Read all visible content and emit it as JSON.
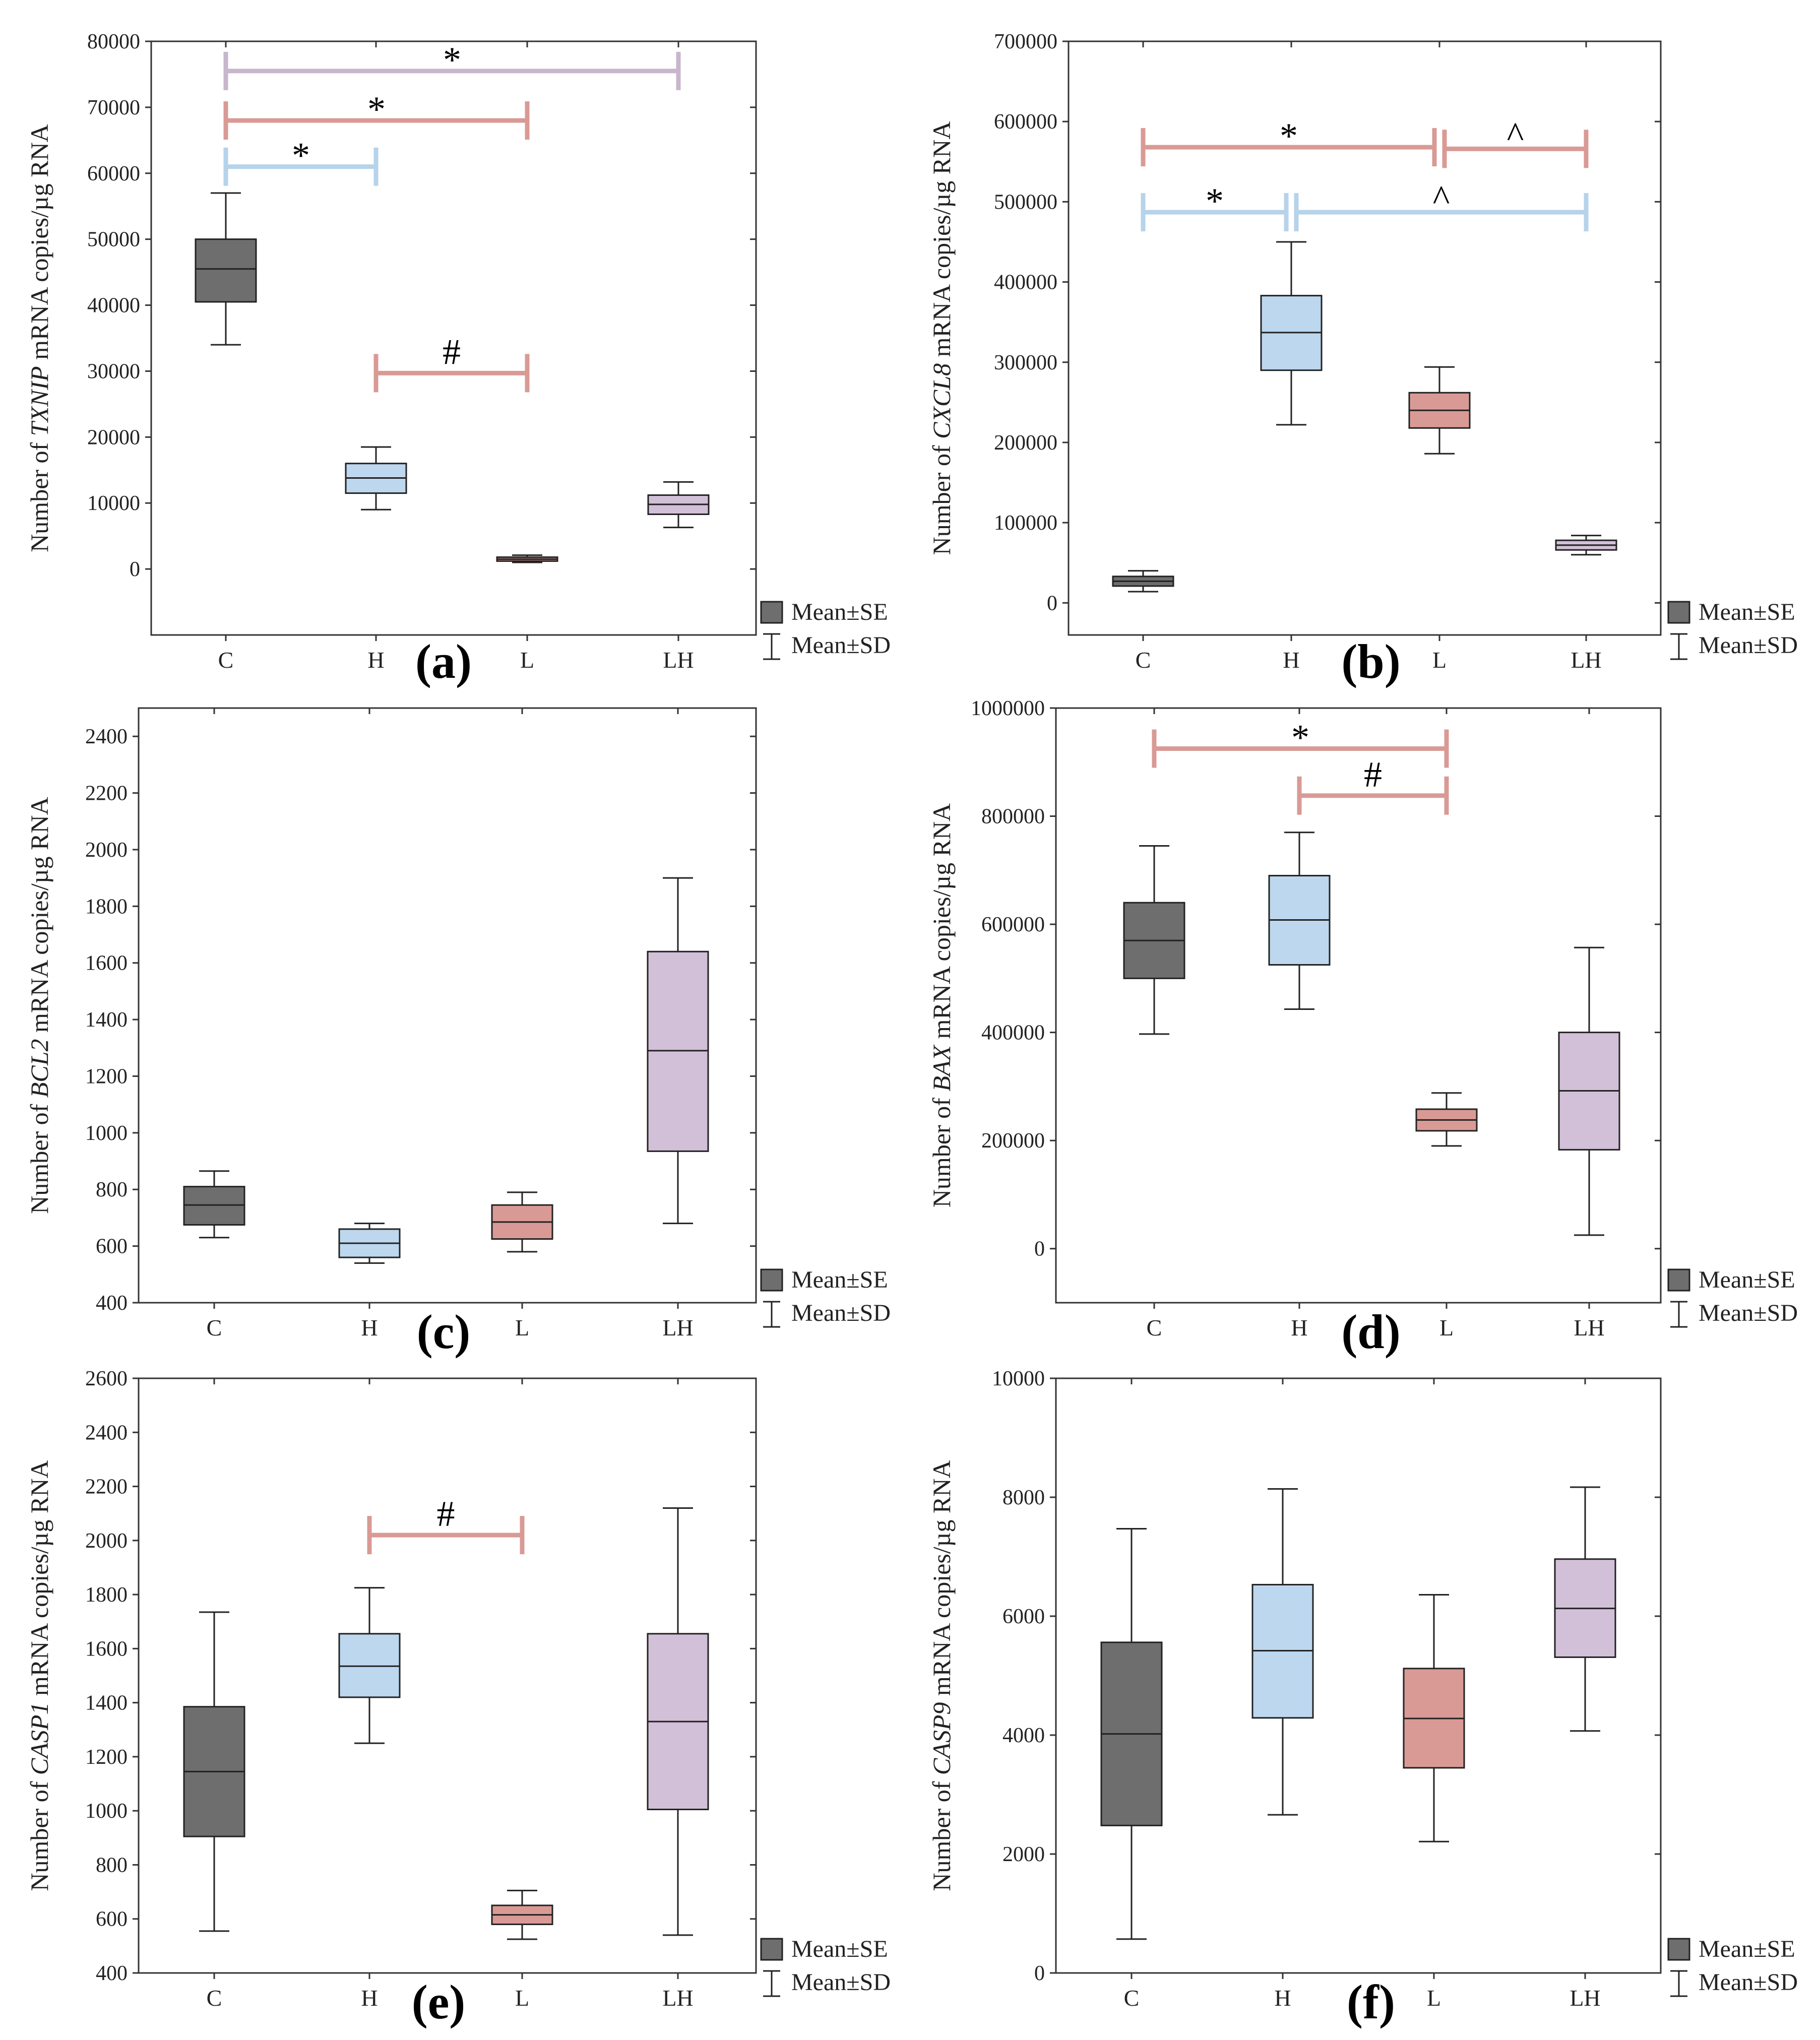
{
  "chart_data": [
    {
      "type": "box",
      "panel_label": "(a)",
      "ylabel": "Number of TXNIP mRNA copies/µg RNA",
      "ylabel_parts": {
        "pre": "Number of ",
        "gene": "TXNIP",
        "post": " mRNA copies/µg RNA"
      },
      "ylim": [
        -10000,
        80000
      ],
      "yticks": [
        "0",
        "10000",
        "20000",
        "30000",
        "40000",
        "50000",
        "60000",
        "70000",
        "80000"
      ],
      "ytick_values": [
        0,
        10000,
        20000,
        30000,
        40000,
        50000,
        60000,
        70000,
        80000
      ],
      "categories": [
        "C",
        "H",
        "L",
        "LH"
      ],
      "groups": [
        {
          "name": "C",
          "mean": 45500,
          "se_low": 40500,
          "se_high": 50000,
          "sd_low": 34000,
          "sd_high": 57000,
          "color": "#6e6e6e"
        },
        {
          "name": "H",
          "mean": 13800,
          "se_low": 11500,
          "se_high": 16000,
          "sd_low": 9000,
          "sd_high": 18500,
          "color": "#bcd7ee"
        },
        {
          "name": "L",
          "mean": 1500,
          "se_low": 1200,
          "se_high": 1800,
          "sd_low": 1000,
          "sd_high": 2100,
          "color": "#d99a95"
        },
        {
          "name": "LH",
          "mean": 9800,
          "se_low": 8300,
          "se_high": 11200,
          "sd_low": 6300,
          "sd_high": 13200,
          "color": "#d2c0d8"
        }
      ],
      "significance": [
        {
          "from": "C",
          "to": "LH",
          "y": 75500,
          "symbol": "*",
          "color": "#c8b6cc"
        },
        {
          "from": "C",
          "to": "L",
          "y": 68000,
          "symbol": "*",
          "color": "#d99a95"
        },
        {
          "from": "C",
          "to": "H",
          "y": 61000,
          "symbol": "*",
          "color": "#b6d3ea"
        },
        {
          "from": "H",
          "to": "L",
          "y": 29700,
          "symbol": "#",
          "color": "#d99a95"
        }
      ],
      "legend": [
        "Mean±SE",
        "Mean±SD"
      ]
    },
    {
      "type": "box",
      "panel_label": "(b)",
      "ylabel": "Number of CXCL8 mRNA copies/µg RNA",
      "ylabel_parts": {
        "pre": "Number of ",
        "gene": "CXCL8",
        "post": " mRNA copies/µg RNA"
      },
      "ylim": [
        -40000,
        700000
      ],
      "yticks": [
        "0",
        "100000",
        "200000",
        "300000",
        "400000",
        "500000",
        "600000",
        "700000"
      ],
      "ytick_values": [
        0,
        100000,
        200000,
        300000,
        400000,
        500000,
        600000,
        700000
      ],
      "categories": [
        "C",
        "H",
        "L",
        "LH"
      ],
      "groups": [
        {
          "name": "C",
          "mean": 27000,
          "se_low": 21000,
          "se_high": 33000,
          "sd_low": 14000,
          "sd_high": 40000,
          "color": "#6e6e6e"
        },
        {
          "name": "H",
          "mean": 337000,
          "se_low": 290000,
          "se_high": 383000,
          "sd_low": 222000,
          "sd_high": 450000,
          "color": "#bcd7ee"
        },
        {
          "name": "L",
          "mean": 240000,
          "se_low": 218000,
          "se_high": 262000,
          "sd_low": 186000,
          "sd_high": 294000,
          "color": "#d99a95"
        },
        {
          "name": "LH",
          "mean": 72000,
          "se_low": 66000,
          "se_high": 78000,
          "sd_low": 60000,
          "sd_high": 84000,
          "color": "#d2c0d8"
        }
      ],
      "significance": [
        {
          "from": "C",
          "to": "L",
          "y": 568000,
          "symbol": "*",
          "color": "#d99a95"
        },
        {
          "from": "L",
          "to": "LH",
          "y": 566000,
          "symbol": "^",
          "color": "#d99a95"
        },
        {
          "from": "C",
          "to": "H",
          "y": 487000,
          "symbol": "*",
          "color": "#b6d3ea"
        },
        {
          "from": "H",
          "to": "LH",
          "y": 487000,
          "symbol": "^",
          "color": "#b6d3ea"
        }
      ],
      "legend": [
        "Mean±SE",
        "Mean±SD"
      ]
    },
    {
      "type": "box",
      "panel_label": "(c)",
      "ylabel": "Number of BCL2 mRNA copies/µg RNA",
      "ylabel_parts": {
        "pre": "Number of ",
        "gene": "BCL2",
        "post": " mRNA copies/µg RNA"
      },
      "ylim": [
        400,
        2500
      ],
      "yticks": [
        "400",
        "600",
        "800",
        "1000",
        "1200",
        "1400",
        "1600",
        "1800",
        "2000",
        "2200",
        "2400"
      ],
      "ytick_values": [
        400,
        600,
        800,
        1000,
        1200,
        1400,
        1600,
        1800,
        2000,
        2200,
        2400
      ],
      "categories": [
        "C",
        "H",
        "L",
        "LH"
      ],
      "groups": [
        {
          "name": "C",
          "mean": 745,
          "se_low": 675,
          "se_high": 810,
          "sd_low": 630,
          "sd_high": 865,
          "color": "#6e6e6e"
        },
        {
          "name": "H",
          "mean": 610,
          "se_low": 560,
          "se_high": 660,
          "sd_low": 540,
          "sd_high": 680,
          "color": "#bcd7ee"
        },
        {
          "name": "L",
          "mean": 685,
          "se_low": 625,
          "se_high": 745,
          "sd_low": 580,
          "sd_high": 790,
          "color": "#d99a95"
        },
        {
          "name": "LH",
          "mean": 1290,
          "se_low": 935,
          "se_high": 1640,
          "sd_low": 680,
          "sd_high": 1900,
          "color": "#d2c0d8"
        }
      ],
      "significance": [],
      "legend": [
        "Mean±SE",
        "Mean±SD"
      ]
    },
    {
      "type": "box",
      "panel_label": "(d)",
      "ylabel": "Number of BAX mRNA copies/µg RNA",
      "ylabel_parts": {
        "pre": "Number of ",
        "gene": "BAX",
        "post": " mRNA copies/µg RNA"
      },
      "ylim": [
        -100000,
        1000000
      ],
      "yticks": [
        "0",
        "200000",
        "400000",
        "600000",
        "800000",
        "1000000"
      ],
      "ytick_values": [
        0,
        200000,
        400000,
        600000,
        800000,
        1000000
      ],
      "categories": [
        "C",
        "H",
        "L",
        "LH"
      ],
      "groups": [
        {
          "name": "C",
          "mean": 570000,
          "se_low": 500000,
          "se_high": 640000,
          "sd_low": 397000,
          "sd_high": 745000,
          "color": "#6e6e6e"
        },
        {
          "name": "H",
          "mean": 608000,
          "se_low": 525000,
          "se_high": 690000,
          "sd_low": 443000,
          "sd_high": 770000,
          "color": "#bcd7ee"
        },
        {
          "name": "L",
          "mean": 238000,
          "se_low": 218000,
          "se_high": 258000,
          "sd_low": 190000,
          "sd_high": 288000,
          "color": "#d99a95"
        },
        {
          "name": "LH",
          "mean": 292000,
          "se_low": 183000,
          "se_high": 400000,
          "sd_low": 25000,
          "sd_high": 557000,
          "color": "#d2c0d8"
        }
      ],
      "significance": [
        {
          "from": "C",
          "to": "L",
          "y": 925000,
          "symbol": "*",
          "color": "#d99a95"
        },
        {
          "from": "H",
          "to": "L",
          "y": 838000,
          "symbol": "#",
          "color": "#d99a95"
        }
      ],
      "legend": [
        "Mean±SE",
        "Mean±SD"
      ]
    },
    {
      "type": "box",
      "panel_label": "(e)",
      "ylabel": "Number of CASP1 mRNA copies/µg RNA",
      "ylabel_parts": {
        "pre": "Number of ",
        "gene": "CASP1",
        "post": " mRNA copies/µg RNA"
      },
      "ylim": [
        400,
        2600
      ],
      "yticks": [
        "400",
        "600",
        "800",
        "1000",
        "1200",
        "1400",
        "1600",
        "1800",
        "2000",
        "2200",
        "2400",
        "2600"
      ],
      "ytick_values": [
        400,
        600,
        800,
        1000,
        1200,
        1400,
        1600,
        1800,
        2000,
        2200,
        2400,
        2600
      ],
      "categories": [
        "C",
        "H",
        "L",
        "LH"
      ],
      "groups": [
        {
          "name": "C",
          "mean": 1145,
          "se_low": 905,
          "se_high": 1385,
          "sd_low": 555,
          "sd_high": 1735,
          "color": "#6e6e6e"
        },
        {
          "name": "H",
          "mean": 1535,
          "se_low": 1420,
          "se_high": 1655,
          "sd_low": 1250,
          "sd_high": 1825,
          "color": "#bcd7ee"
        },
        {
          "name": "L",
          "mean": 615,
          "se_low": 580,
          "se_high": 650,
          "sd_low": 525,
          "sd_high": 705,
          "color": "#d99a95"
        },
        {
          "name": "LH",
          "mean": 1330,
          "se_low": 1005,
          "se_high": 1655,
          "sd_low": 540,
          "sd_high": 2120,
          "color": "#d2c0d8"
        }
      ],
      "significance": [
        {
          "from": "H",
          "to": "L",
          "y": 2020,
          "symbol": "#",
          "color": "#d99a95"
        }
      ],
      "legend": [
        "Mean±SE",
        "Mean±SD"
      ]
    },
    {
      "type": "box",
      "panel_label": "(f)",
      "ylabel": "Number of CASP9 mRNA copies/µg RNA",
      "ylabel_parts": {
        "pre": "Number of ",
        "gene": "CASP9",
        "post": " mRNA copies/µg RNA"
      },
      "ylim": [
        0,
        10000
      ],
      "yticks": [
        "0",
        "2000",
        "4000",
        "6000",
        "8000",
        "10000"
      ],
      "ytick_values": [
        0,
        2000,
        4000,
        6000,
        8000,
        10000
      ],
      "categories": [
        "C",
        "H",
        "L",
        "LH"
      ],
      "groups": [
        {
          "name": "C",
          "mean": 4020,
          "se_low": 2480,
          "se_high": 5560,
          "sd_low": 570,
          "sd_high": 7470,
          "color": "#6e6e6e"
        },
        {
          "name": "H",
          "mean": 5420,
          "se_low": 4290,
          "se_high": 6530,
          "sd_low": 2660,
          "sd_high": 8140,
          "color": "#bcd7ee"
        },
        {
          "name": "L",
          "mean": 4280,
          "se_low": 3450,
          "se_high": 5120,
          "sd_low": 2210,
          "sd_high": 6360,
          "color": "#d99a95"
        },
        {
          "name": "LH",
          "mean": 6130,
          "se_low": 5310,
          "se_high": 6960,
          "sd_low": 4070,
          "sd_high": 8170,
          "color": "#d2c0d8"
        }
      ],
      "significance": [],
      "legend": [
        "Mean±SE",
        "Mean±SD"
      ]
    }
  ]
}
